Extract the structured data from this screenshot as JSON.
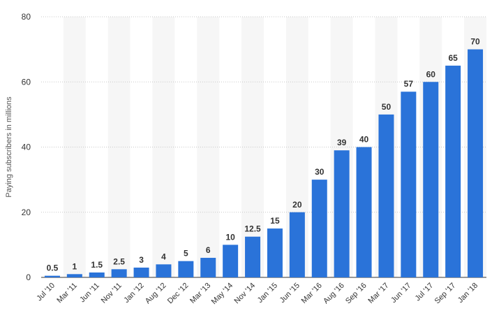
{
  "chart_data": {
    "type": "bar",
    "title": "",
    "xlabel": "",
    "ylabel": "Paying subscribers in millions",
    "ylim": [
      0,
      80
    ],
    "yticks": [
      0,
      20,
      40,
      60,
      80
    ],
    "grid": true,
    "categories": [
      "Jul '10",
      "Mar '11",
      "Jun '11",
      "Nov '11",
      "Jan '12",
      "Aug '12",
      "Dec '12",
      "Mar '13",
      "May '14",
      "Nov '14",
      "Jan '15",
      "Jun '15",
      "Mar '16",
      "Aug '16",
      "Sep '16",
      "Mar '17",
      "Jun '17",
      "Jul '17",
      "Sep '17",
      "Jan '18"
    ],
    "values": [
      0.5,
      1,
      1.5,
      2.5,
      3,
      4,
      5,
      6,
      10,
      12.5,
      15,
      20,
      30,
      39,
      40,
      50,
      57,
      60,
      65,
      70
    ],
    "data_labels": [
      "0.5",
      "1",
      "1.5",
      "2.5",
      "3",
      "4",
      "5",
      "6",
      "10",
      "12.5",
      "15",
      "20",
      "30",
      "39",
      "40",
      "50",
      "57",
      "60",
      "65",
      "70"
    ],
    "bar_color": "#2a73d9"
  }
}
